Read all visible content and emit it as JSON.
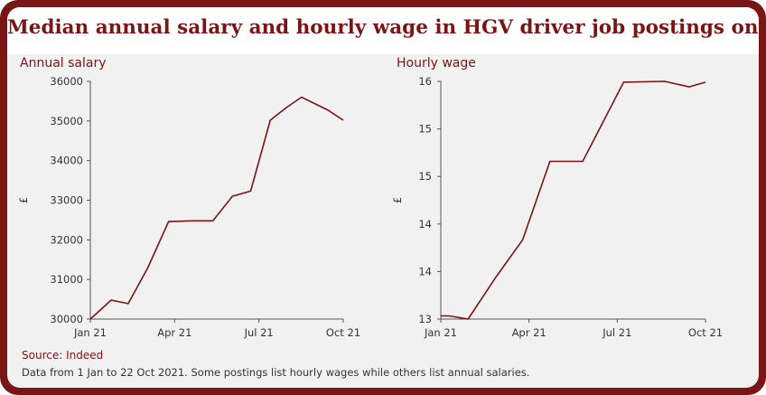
{
  "title": "Median annual salary and hourly wage in HGV driver job postings on Indeed UK",
  "source": "Source: Indeed",
  "note": "Data from 1 Jan to 22 Oct 2021. Some postings list hourly wages while others list annual salaries.",
  "colors": {
    "frame": "#7a1515",
    "line": "#7a1515",
    "background": "#f1f1f1"
  },
  "chart_data": [
    {
      "type": "line",
      "title": "Annual salary",
      "ylabel": "£",
      "xlabel": "",
      "x_ticks": [
        "Jan 21",
        "Apr 21",
        "Jul 21",
        "Oct 21"
      ],
      "y_ticks": [
        "30000",
        "31000",
        "32000",
        "33000",
        "34000",
        "35000",
        "36000"
      ],
      "xlim": [
        0,
        9.7
      ],
      "ylim": [
        30000,
        36000
      ],
      "grid": false,
      "series": [
        {
          "x": [
            0,
            0.8,
            1.45,
            2.2,
            3.0,
            3.9,
            4.7,
            5.45,
            6.15,
            6.9,
            7.5,
            8.1,
            9.1,
            9.7
          ],
          "values": [
            30000,
            30480,
            30390,
            31290,
            32460,
            32480,
            32480,
            33100,
            33230,
            35020,
            35330,
            35600,
            35280,
            35020
          ]
        }
      ]
    },
    {
      "type": "line",
      "title": "Hourly wage",
      "ylabel": "£",
      "xlabel": "",
      "x_ticks": [
        "Jan 21",
        "Apr 21",
        "Jul 21",
        "Oct 21"
      ],
      "y_ticks": [
        "13",
        "14",
        "14",
        "15",
        "15",
        "16"
      ],
      "xlim": [
        0,
        9.7
      ],
      "ylim": [
        13,
        16
      ],
      "grid": false,
      "series": [
        {
          "x": [
            0,
            0.3,
            1.0,
            2.0,
            3.0,
            4.0,
            5.2,
            6.7,
            8.2,
            9.1,
            9.7
          ],
          "values": [
            13.04,
            13.04,
            13.0,
            13.52,
            14.0,
            14.99,
            14.99,
            15.99,
            16.0,
            15.93,
            15.99
          ]
        }
      ]
    }
  ]
}
